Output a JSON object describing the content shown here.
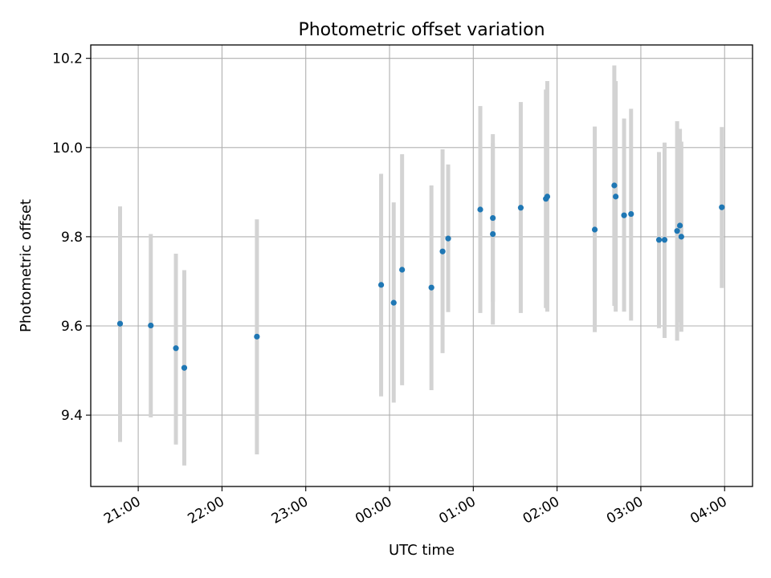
{
  "chart_data": {
    "type": "scatter",
    "title": "Photometric offset variation",
    "xlabel": "UTC time",
    "ylabel": "Photometric offset",
    "xlim": [
      "20:26",
      "04:20"
    ],
    "ylim": [
      9.24,
      10.23
    ],
    "x_ticks": [
      "21:00",
      "22:00",
      "23:00",
      "00:00",
      "01:00",
      "02:00",
      "03:00",
      "04:00"
    ],
    "y_ticks": [
      9.4,
      9.6,
      9.8,
      10.0,
      10.2
    ],
    "grid": true,
    "legend": "none",
    "colors": {
      "point": "#1f77b4",
      "errorbar": "#d3d3d3",
      "grid": "#b0b0b0"
    },
    "points": [
      {
        "time": "20:47",
        "y": 9.605,
        "err_low": 9.34,
        "err_high": 9.868
      },
      {
        "time": "21:09",
        "y": 9.601,
        "err_low": 9.395,
        "err_high": 9.806
      },
      {
        "time": "21:27",
        "y": 9.55,
        "err_low": 9.334,
        "err_high": 9.762
      },
      {
        "time": "21:33",
        "y": 9.506,
        "err_low": 9.287,
        "err_high": 9.725
      },
      {
        "time": "22:25",
        "y": 9.576,
        "err_low": 9.312,
        "err_high": 9.839
      },
      {
        "time": "23:54",
        "y": 9.692,
        "err_low": 9.442,
        "err_high": 9.941
      },
      {
        "time": "00:03",
        "y": 9.652,
        "err_low": 9.428,
        "err_high": 9.877
      },
      {
        "time": "00:09",
        "y": 9.726,
        "err_low": 9.467,
        "err_high": 9.985
      },
      {
        "time": "00:30",
        "y": 9.686,
        "err_low": 9.456,
        "err_high": 9.915
      },
      {
        "time": "00:38",
        "y": 9.767,
        "err_low": 9.539,
        "err_high": 9.996
      },
      {
        "time": "00:42",
        "y": 9.796,
        "err_low": 9.631,
        "err_high": 9.962
      },
      {
        "time": "01:05",
        "y": 9.861,
        "err_low": 9.629,
        "err_high": 10.093
      },
      {
        "time": "01:14",
        "y": 9.842,
        "err_low": 9.654,
        "err_high": 10.03
      },
      {
        "time": "01:14",
        "y": 9.806,
        "err_low": 9.603,
        "err_high": 10.01
      },
      {
        "time": "01:34",
        "y": 9.865,
        "err_low": 9.629,
        "err_high": 10.102
      },
      {
        "time": "01:52",
        "y": 9.885,
        "err_low": 9.64,
        "err_high": 10.13
      },
      {
        "time": "01:53",
        "y": 9.89,
        "err_low": 9.632,
        "err_high": 10.149
      },
      {
        "time": "02:27",
        "y": 9.816,
        "err_low": 9.586,
        "err_high": 10.047
      },
      {
        "time": "02:41",
        "y": 9.915,
        "err_low": 9.645,
        "err_high": 10.184
      },
      {
        "time": "02:42",
        "y": 9.89,
        "err_low": 9.632,
        "err_high": 10.149
      },
      {
        "time": "02:48",
        "y": 9.848,
        "err_low": 9.632,
        "err_high": 10.065
      },
      {
        "time": "02:53",
        "y": 9.851,
        "err_low": 9.612,
        "err_high": 10.087
      },
      {
        "time": "03:13",
        "y": 9.793,
        "err_low": 9.595,
        "err_high": 9.99
      },
      {
        "time": "03:17",
        "y": 9.793,
        "err_low": 9.573,
        "err_high": 10.011
      },
      {
        "time": "03:26",
        "y": 9.813,
        "err_low": 9.567,
        "err_high": 10.059
      },
      {
        "time": "03:28",
        "y": 9.825,
        "err_low": 9.608,
        "err_high": 10.042
      },
      {
        "time": "03:29",
        "y": 9.8,
        "err_low": 9.587,
        "err_high": 10.013
      },
      {
        "time": "03:58",
        "y": 9.866,
        "err_low": 9.685,
        "err_high": 10.046
      }
    ]
  }
}
